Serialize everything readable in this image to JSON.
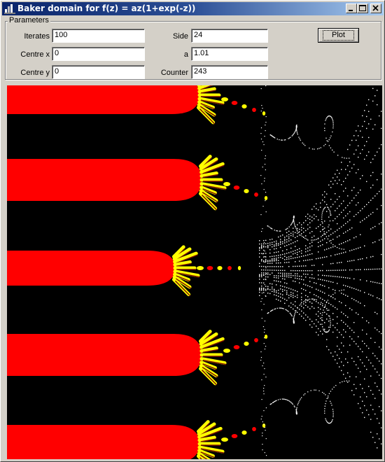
{
  "window": {
    "title": "Baker domain for f(z) = az(1+exp(-z))",
    "controls": {
      "minimize": "minimize-icon",
      "maximize": "maximize-icon",
      "close": "close-icon"
    }
  },
  "parameters": {
    "group_label": "Parameters",
    "iterates": {
      "label": "Iterates",
      "value": "100"
    },
    "centre_x": {
      "label": "Centre x",
      "value": "0"
    },
    "centre_y": {
      "label": "Centre y",
      "value": "0"
    },
    "side": {
      "label": "Side",
      "value": "24"
    },
    "a": {
      "label": "a",
      "value": "1.01"
    },
    "counter": {
      "label": "Counter",
      "value": "243"
    },
    "plot_button": "Plot"
  },
  "plot": {
    "icon": "fractal-plot",
    "colors": {
      "background": "#000000",
      "basin": "#ff0000",
      "petals": "#ffff00",
      "dots": "#ffffff",
      "dark_petals": "#7a1000"
    }
  }
}
